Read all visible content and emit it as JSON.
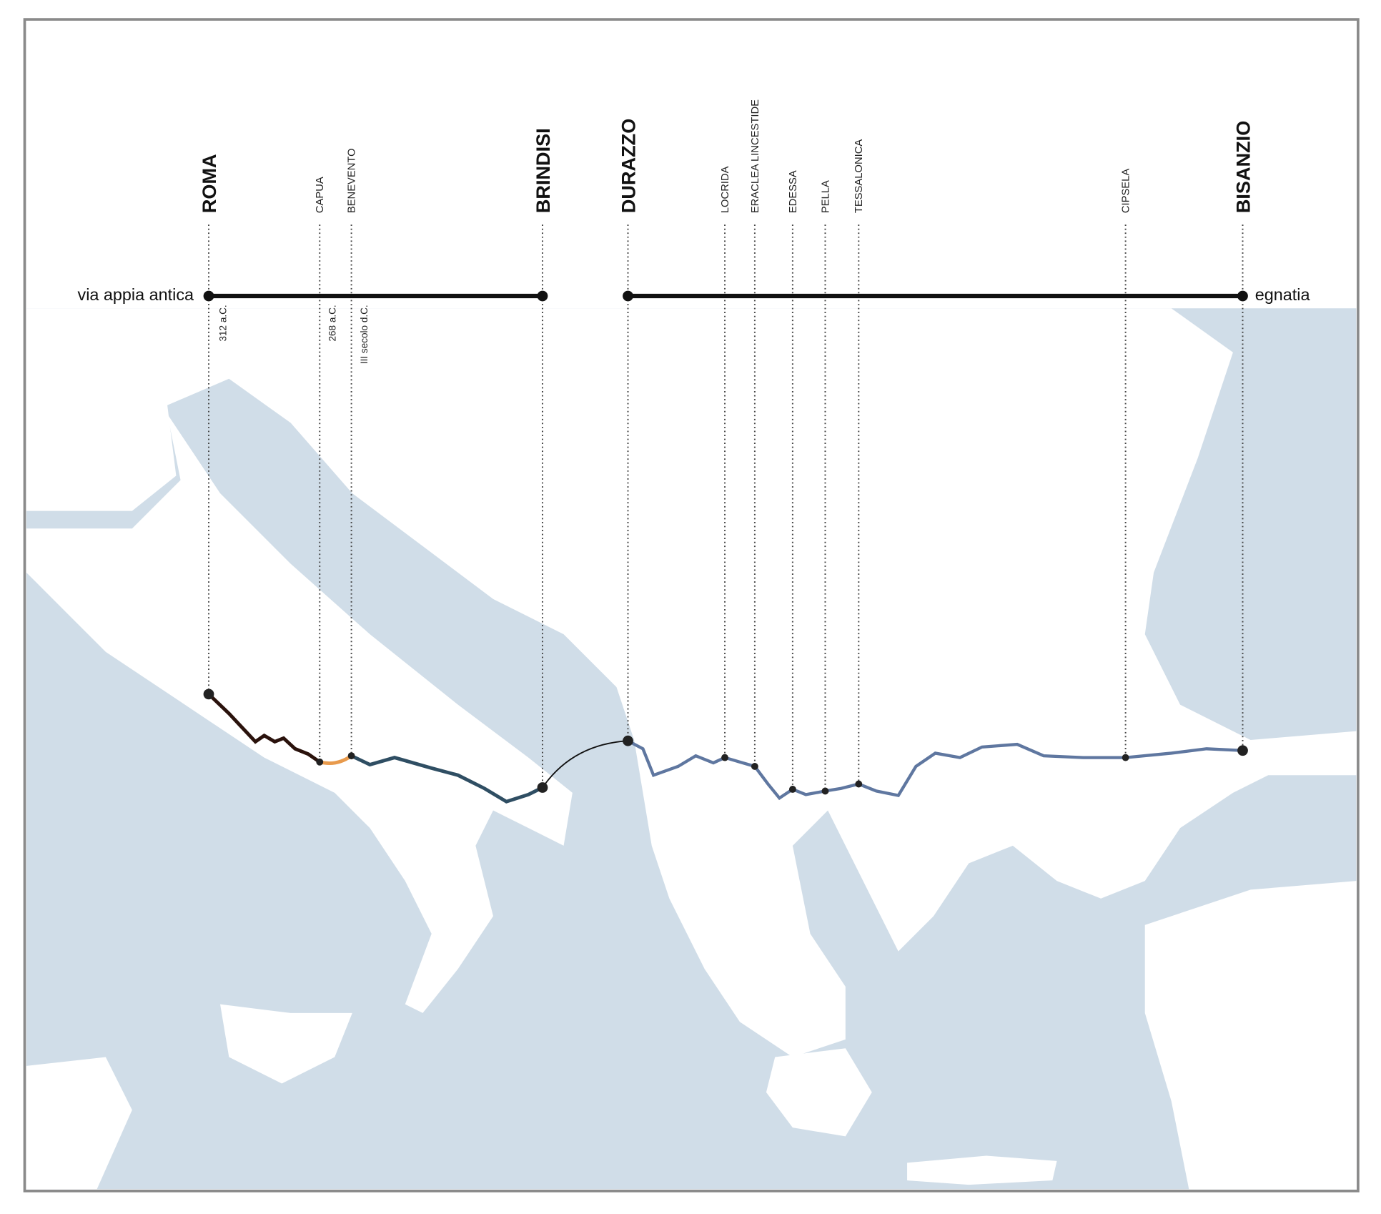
{
  "roads": [
    {
      "name": "via appia antica"
    },
    {
      "name": "egnatia"
    }
  ],
  "cities": [
    {
      "name": "ROMA"
    },
    {
      "name": "CAPUA"
    },
    {
      "name": "BENEVENTO"
    },
    {
      "name": "BRINDISI"
    },
    {
      "name": "DURAZZO"
    },
    {
      "name": "LOCRIDA"
    },
    {
      "name": "ERACLEA LINCESTIDE"
    },
    {
      "name": "EDESSA"
    },
    {
      "name": "PELLA"
    },
    {
      "name": "TESSALONICA"
    },
    {
      "name": "CIPSELA"
    },
    {
      "name": "BISANZIO"
    }
  ],
  "dates": [
    "312 a.C.",
    "268 a.C.",
    "III secolo d.C."
  ]
}
